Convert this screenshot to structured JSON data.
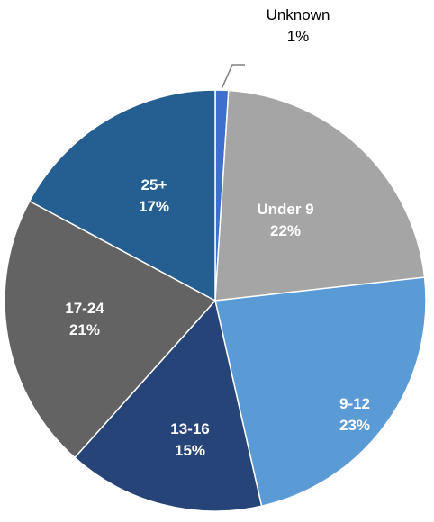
{
  "chart_data": {
    "type": "pie",
    "slices": [
      {
        "label": "Unknown",
        "value": 1,
        "display": "1%",
        "color": "#3f6fce"
      },
      {
        "label": "Under 9",
        "value": 22,
        "display": "22%",
        "color": "#a5a5a5"
      },
      {
        "label": "9-12",
        "value": 23,
        "display": "23%",
        "color": "#5b9bd5"
      },
      {
        "label": "13-16",
        "value": 15,
        "display": "15%",
        "color": "#264478"
      },
      {
        "label": "17-24",
        "value": 21,
        "display": "21%",
        "color": "#636363"
      },
      {
        "label": "25+",
        "value": 17,
        "display": "17%",
        "color": "#255e91"
      }
    ],
    "start_angle": "12 o'clock, clockwise",
    "label_style": "category and percentage inside slices; Unknown outside with leader line"
  }
}
